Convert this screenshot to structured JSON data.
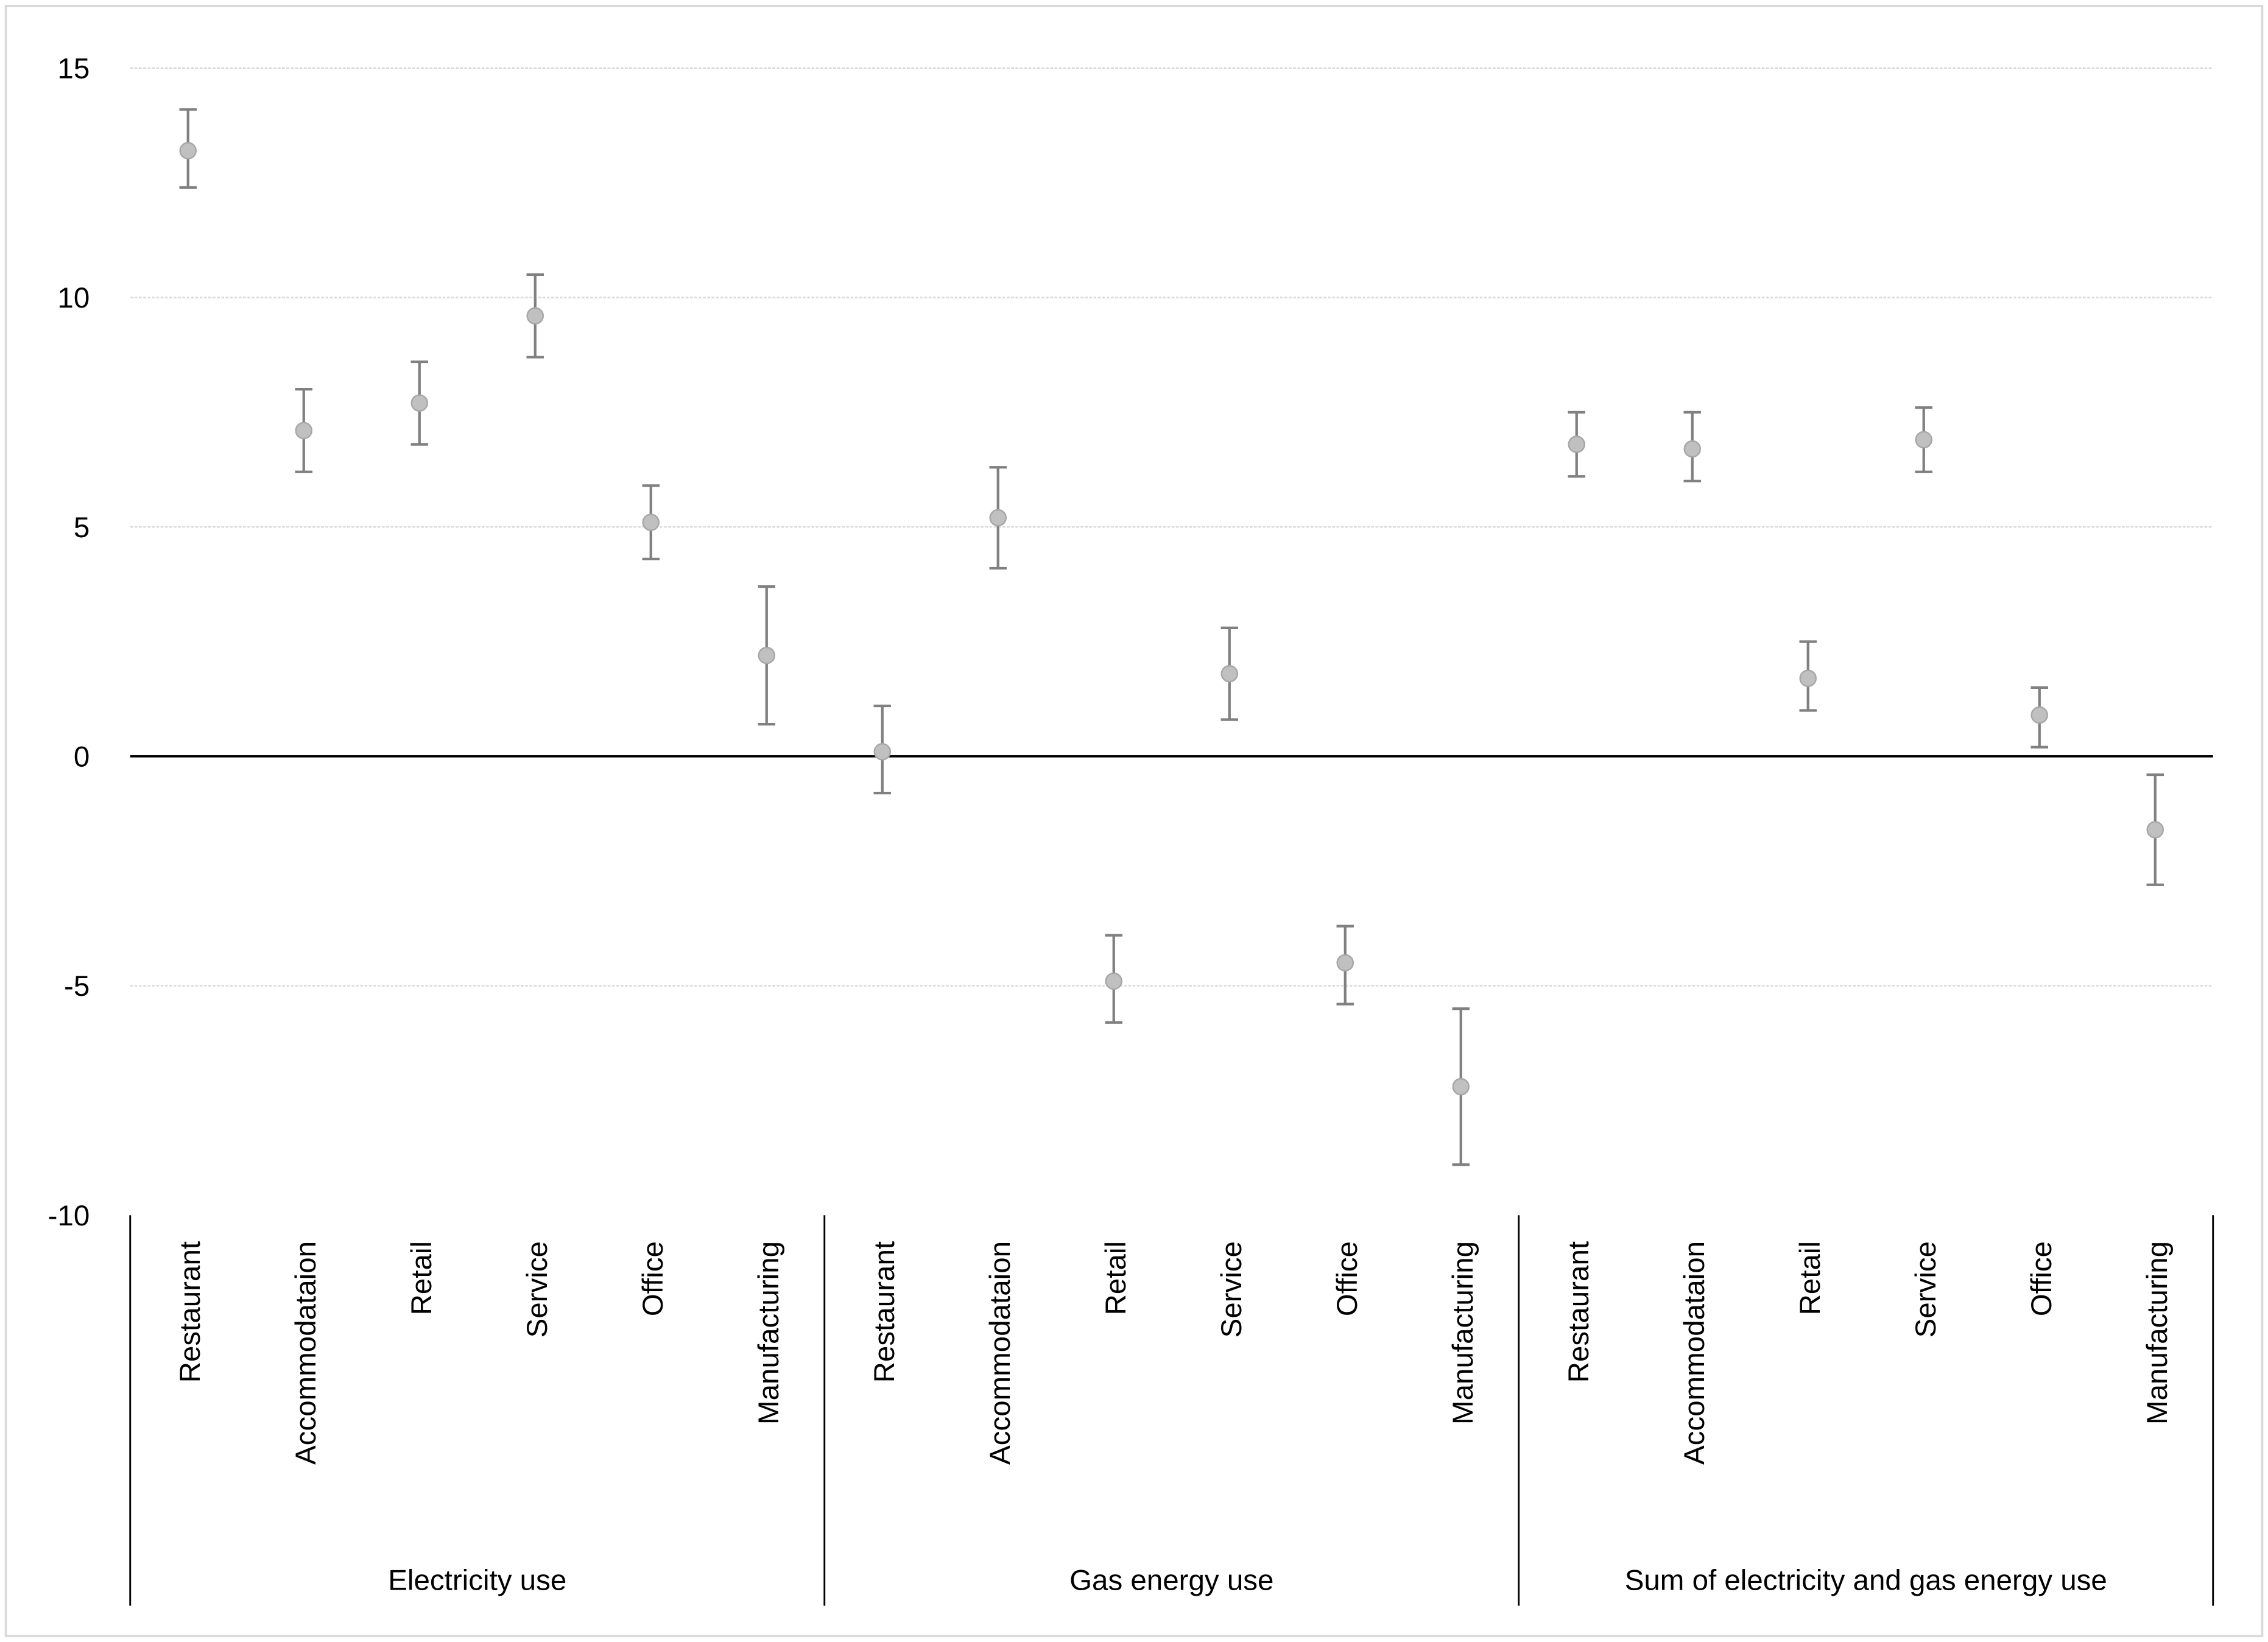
{
  "chart_data": {
    "type": "scatter",
    "title": "",
    "xlabel": "",
    "ylabel": "",
    "ylim": [
      -10,
      15
    ],
    "yticks": [
      -10,
      -5,
      0,
      5,
      10,
      15
    ],
    "grid": true,
    "legend": "none",
    "colors": {
      "marker": "#c0c0c0",
      "marker_edge": "#a6a6a6",
      "error_bar": "#808080",
      "grid": "#d9d9d9",
      "zero_line": "#000000"
    },
    "groups": [
      {
        "name": "Electricity use",
        "categories": [
          "Restaurant",
          "Accommodataion",
          "Retail",
          "Service",
          "Office",
          "Manufacturing"
        ],
        "values": [
          13.2,
          7.1,
          7.7,
          9.6,
          5.1,
          2.2
        ],
        "lower": [
          12.4,
          6.2,
          6.8,
          8.7,
          4.3,
          0.7
        ],
        "upper": [
          14.1,
          8.0,
          8.6,
          10.5,
          5.9,
          3.7
        ]
      },
      {
        "name": "Gas energy use",
        "categories": [
          "Restaurant",
          "Accommodataion",
          "Retail",
          "Service",
          "Office",
          "Manufacturing"
        ],
        "values": [
          0.1,
          5.2,
          -4.9,
          1.8,
          -4.5,
          -7.2
        ],
        "lower": [
          -0.8,
          4.1,
          -5.8,
          0.8,
          -5.4,
          -8.9
        ],
        "upper": [
          1.1,
          6.3,
          -3.9,
          2.8,
          -3.7,
          -5.5
        ]
      },
      {
        "name": "Sum of electricity and gas energy use",
        "categories": [
          "Restaurant",
          "Accommodataion",
          "Retail",
          "Service",
          "Office",
          "Manufacturing"
        ],
        "values": [
          6.8,
          6.7,
          1.7,
          6.9,
          0.9,
          -1.6
        ],
        "lower": [
          6.1,
          6.0,
          1.0,
          6.2,
          0.2,
          -2.8
        ],
        "upper": [
          7.5,
          7.5,
          2.5,
          7.6,
          1.5,
          -0.4
        ]
      }
    ]
  }
}
